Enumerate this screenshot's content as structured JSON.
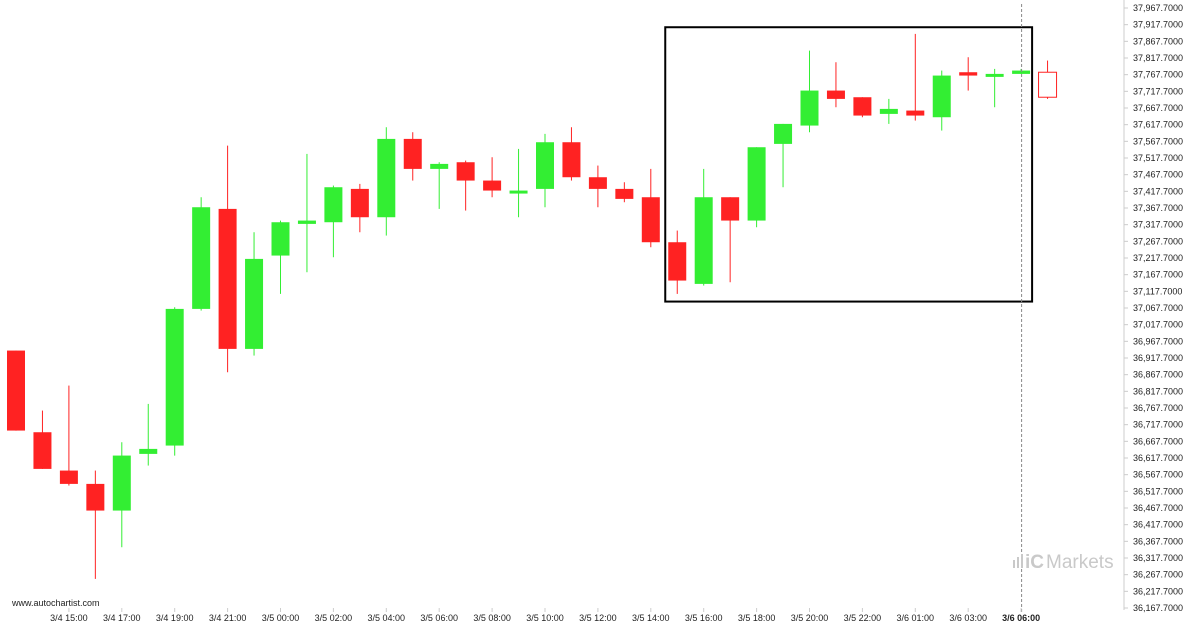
{
  "source": {
    "text": "www.autochartist.com"
  },
  "brand": {
    "text": "Markets",
    "icon": "ic-markets-logo-icon",
    "color": "#c9c9c9"
  },
  "colors": {
    "bullish": "#33ee33",
    "bearish": "#ff2222",
    "pattern_box": "#000000",
    "current_time_line": "#888888"
  },
  "chart_data": {
    "type": "candlestick",
    "yaxis": {
      "range": [
        36167.7,
        37967.7
      ],
      "step": 50,
      "labels": [
        "37,967.7000",
        "37,917.7000",
        "37,867.7000",
        "37,817.7000",
        "37,767.7000",
        "37,717.7000",
        "37,667.7000",
        "37,617.7000",
        "37,567.7000",
        "37,517.7000",
        "37,467.7000",
        "37,417.7000",
        "37,367.7000",
        "37,317.7000",
        "37,267.7000",
        "37,217.7000",
        "37,167.7000",
        "37,117.7000",
        "37,067.7000",
        "37,017.7000",
        "36,967.7000",
        "36,917.7000",
        "36,867.7000",
        "36,817.7000",
        "36,767.7000",
        "36,717.7000",
        "36,667.7000",
        "36,617.7000",
        "36,567.7000",
        "36,517.7000",
        "36,467.7000",
        "36,417.7000",
        "36,367.7000",
        "36,317.7000",
        "36,267.7000",
        "36,217.7000",
        "36,167.7000"
      ]
    },
    "xaxis": {
      "labels": [
        {
          "text": "3/4 15:00",
          "index": 2
        },
        {
          "text": "3/4 17:00",
          "index": 4
        },
        {
          "text": "3/4 19:00",
          "index": 6
        },
        {
          "text": "3/4 21:00",
          "index": 8
        },
        {
          "text": "3/5 00:00",
          "index": 10
        },
        {
          "text": "3/5 02:00",
          "index": 12
        },
        {
          "text": "3/5 04:00",
          "index": 14
        },
        {
          "text": "3/5 06:00",
          "index": 16
        },
        {
          "text": "3/5 08:00",
          "index": 18
        },
        {
          "text": "3/5 10:00",
          "index": 20
        },
        {
          "text": "3/5 12:00",
          "index": 22
        },
        {
          "text": "3/5 14:00",
          "index": 24
        },
        {
          "text": "3/5 16:00",
          "index": 26
        },
        {
          "text": "3/5 18:00",
          "index": 28
        },
        {
          "text": "3/5 20:00",
          "index": 30
        },
        {
          "text": "3/5 22:00",
          "index": 32
        },
        {
          "text": "3/6 01:00",
          "index": 34
        },
        {
          "text": "3/6 03:00",
          "index": 36
        },
        {
          "text": "3/6 06:00",
          "index": 38,
          "current": true
        }
      ]
    },
    "candles": [
      {
        "o": 36940,
        "h": 36940,
        "l": 36700,
        "c": 36700
      },
      {
        "o": 36695,
        "h": 36760,
        "l": 36585,
        "c": 36585
      },
      {
        "o": 36580,
        "h": 36835,
        "l": 36535,
        "c": 36540
      },
      {
        "o": 36540,
        "h": 36580,
        "l": 36255,
        "c": 36460
      },
      {
        "o": 36460,
        "h": 36665,
        "l": 36350,
        "c": 36625
      },
      {
        "o": 36630,
        "h": 36780,
        "l": 36595,
        "c": 36645
      },
      {
        "o": 36655,
        "h": 37070,
        "l": 36625,
        "c": 37065
      },
      {
        "o": 37065,
        "h": 37400,
        "l": 37060,
        "c": 37370
      },
      {
        "o": 37365,
        "h": 37555,
        "l": 36875,
        "c": 36945
      },
      {
        "o": 36945,
        "h": 37295,
        "l": 36925,
        "c": 37215
      },
      {
        "o": 37225,
        "h": 37330,
        "l": 37110,
        "c": 37325
      },
      {
        "o": 37320,
        "h": 37530,
        "l": 37175,
        "c": 37330
      },
      {
        "o": 37325,
        "h": 37435,
        "l": 37220,
        "c": 37430
      },
      {
        "o": 37425,
        "h": 37440,
        "l": 37295,
        "c": 37340
      },
      {
        "o": 37340,
        "h": 37610,
        "l": 37285,
        "c": 37575
      },
      {
        "o": 37575,
        "h": 37595,
        "l": 37450,
        "c": 37485
      },
      {
        "o": 37485,
        "h": 37505,
        "l": 37365,
        "c": 37500
      },
      {
        "o": 37505,
        "h": 37510,
        "l": 37360,
        "c": 37450
      },
      {
        "o": 37450,
        "h": 37520,
        "l": 37400,
        "c": 37420
      },
      {
        "o": 37420,
        "h": 37545,
        "l": 37340,
        "c": 37420
      },
      {
        "o": 37425,
        "h": 37590,
        "l": 37370,
        "c": 37565
      },
      {
        "o": 37565,
        "h": 37610,
        "l": 37450,
        "c": 37460
      },
      {
        "o": 37460,
        "h": 37495,
        "l": 37370,
        "c": 37425
      },
      {
        "o": 37425,
        "h": 37445,
        "l": 37385,
        "c": 37395
      },
      {
        "o": 37400,
        "h": 37485,
        "l": 37250,
        "c": 37265
      },
      {
        "o": 37265,
        "h": 37300,
        "l": 37110,
        "c": 37150
      },
      {
        "o": 37140,
        "h": 37485,
        "l": 37135,
        "c": 37400
      },
      {
        "o": 37400,
        "h": 37400,
        "l": 37145,
        "c": 37330
      },
      {
        "o": 37330,
        "h": 37550,
        "l": 37310,
        "c": 37550
      },
      {
        "o": 37560,
        "h": 37620,
        "l": 37430,
        "c": 37620
      },
      {
        "o": 37615,
        "h": 37840,
        "l": 37595,
        "c": 37720
      },
      {
        "o": 37720,
        "h": 37805,
        "l": 37670,
        "c": 37695
      },
      {
        "o": 37700,
        "h": 37700,
        "l": 37640,
        "c": 37645
      },
      {
        "o": 37650,
        "h": 37695,
        "l": 37620,
        "c": 37665
      },
      {
        "o": 37660,
        "h": 37890,
        "l": 37630,
        "c": 37645
      },
      {
        "o": 37640,
        "h": 37780,
        "l": 37600,
        "c": 37765
      },
      {
        "o": 37775,
        "h": 37820,
        "l": 37720,
        "c": 37765
      },
      {
        "o": 37765,
        "h": 37785,
        "l": 37670,
        "c": 37770
      },
      {
        "o": 37770,
        "h": 37785,
        "l": 37770,
        "c": 37780
      },
      {
        "o": 37775,
        "h": 37810,
        "l": 37695,
        "c": 37700,
        "hollow": true
      }
    ],
    "pattern_box": {
      "from_index": 25,
      "to_index": 38,
      "top": 37910,
      "bottom": 37087
    },
    "current_time_index": 38,
    "grid": false
  }
}
